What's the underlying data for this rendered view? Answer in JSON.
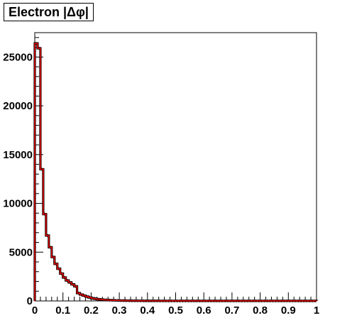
{
  "chart_data": {
    "type": "bar",
    "title": "Electron |Δφ|",
    "xlabel": "",
    "ylabel": "",
    "xlim": [
      0,
      1
    ],
    "ylim": [
      0,
      27500
    ],
    "bin_width": 0.01,
    "x_ticks": [
      "0",
      "0.1",
      "0.2",
      "0.3",
      "0.4",
      "0.5",
      "0.6",
      "0.7",
      "0.8",
      "0.9",
      "1"
    ],
    "y_ticks": [
      "0",
      "5000",
      "10000",
      "15000",
      "20000",
      "25000"
    ],
    "x_tick_values": [
      0,
      0.1,
      0.2,
      0.3,
      0.4,
      0.5,
      0.6,
      0.7,
      0.8,
      0.9,
      1
    ],
    "y_tick_values": [
      0,
      5000,
      10000,
      15000,
      20000,
      25000
    ],
    "series": [
      {
        "type": "step",
        "color": "#e00000",
        "values": [
          26400,
          25900,
          13500,
          8900,
          6700,
          5500,
          4500,
          3800,
          3300,
          2800,
          2400,
          2100,
          1900,
          1700,
          1500,
          800,
          650,
          550,
          450,
          350,
          280,
          220,
          180,
          150,
          120,
          100,
          80,
          70,
          60,
          50,
          40,
          35,
          30,
          25,
          20,
          20,
          15,
          15,
          12,
          10,
          10,
          10,
          8,
          8,
          6,
          6,
          6,
          5,
          5,
          5,
          4,
          4,
          4,
          4,
          3,
          3,
          3,
          3,
          3,
          3,
          3,
          3,
          3,
          3,
          3,
          3,
          3,
          3,
          3,
          3,
          3,
          3,
          3,
          3,
          3,
          3,
          3,
          3,
          3,
          3,
          3,
          3,
          3,
          3,
          3,
          3,
          3,
          3,
          3,
          3,
          3,
          3,
          3,
          3,
          3,
          3,
          3,
          3,
          3,
          3
        ]
      },
      {
        "type": "points",
        "color": "#000000",
        "values": [
          26400,
          25900,
          13500,
          8900,
          6700,
          5500,
          4500,
          3800,
          3300,
          2800,
          2400,
          2100,
          1900,
          1700,
          1500,
          800,
          650,
          550,
          450,
          350,
          280,
          220,
          180,
          150,
          120,
          100,
          80,
          70,
          60,
          50,
          40,
          35,
          30,
          25,
          20,
          20,
          15,
          15,
          12,
          10,
          10,
          10,
          8,
          8,
          6,
          6,
          6,
          5,
          5,
          5,
          4,
          4,
          4,
          4,
          3,
          3,
          3,
          3,
          3,
          3,
          3,
          3,
          3,
          3,
          3,
          3,
          3,
          3,
          3,
          3,
          3,
          3,
          3,
          3,
          3,
          3,
          3,
          3,
          3,
          3,
          3,
          3,
          3,
          3,
          3,
          3,
          3,
          3,
          3,
          3,
          3,
          3,
          3,
          3,
          3,
          3,
          3,
          3,
          3,
          3
        ]
      }
    ]
  }
}
